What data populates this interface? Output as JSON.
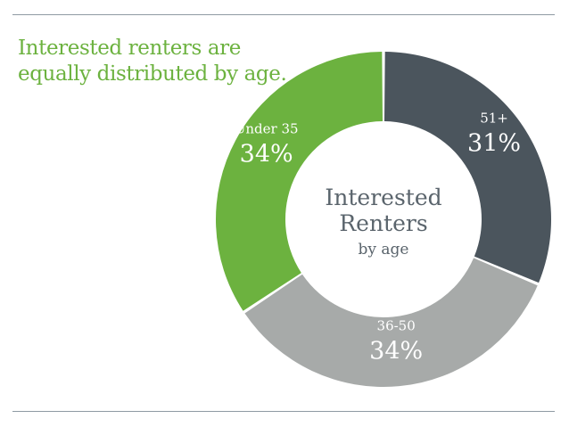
{
  "headline": {
    "line1": "Interested renters are",
    "line2": "equally distributed by age."
  },
  "chart_data": {
    "type": "pie",
    "variant": "donut",
    "center_title": [
      "Interested",
      "Renters"
    ],
    "center_subtitle": "by age",
    "categories": [
      "51+",
      "36-50",
      "Under 35"
    ],
    "values": [
      31,
      34,
      34
    ],
    "value_labels": [
      "31%",
      "34%",
      "34%"
    ],
    "colors": [
      "#4b555d",
      "#a7aaa9",
      "#6cb23f"
    ],
    "legend": "none",
    "grid": false
  }
}
